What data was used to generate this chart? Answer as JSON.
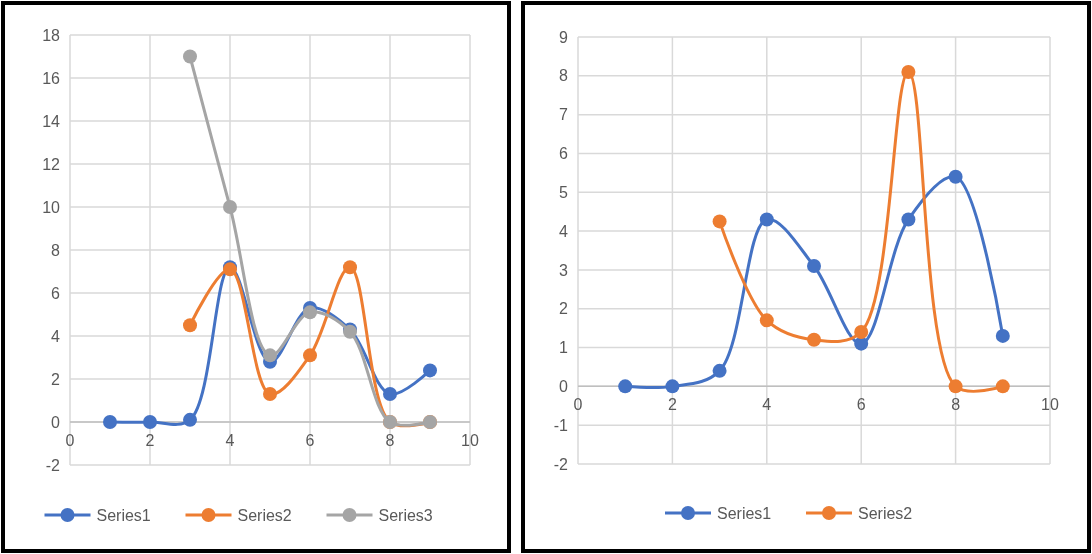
{
  "chart_data": [
    {
      "type": "line",
      "x": [
        1,
        2,
        3,
        4,
        5,
        6,
        7,
        8,
        9
      ],
      "series": [
        {
          "name": "Series1",
          "color": "#4472c4",
          "values": [
            0,
            0,
            0.1,
            7.2,
            2.8,
            5.3,
            4.3,
            1.3,
            2.4
          ]
        },
        {
          "name": "Series2",
          "color": "#ed7d31",
          "x": [
            3,
            4,
            5,
            6,
            7,
            8,
            9
          ],
          "values": [
            4.5,
            7.1,
            1.3,
            3.1,
            7.2,
            0,
            0
          ]
        },
        {
          "name": "Series3",
          "color": "#a5a5a5",
          "x": [
            3,
            4,
            5,
            6,
            7,
            8,
            9
          ],
          "values": [
            17,
            10,
            3.1,
            5.1,
            4.2,
            0,
            0
          ]
        }
      ],
      "xlim": [
        0,
        10
      ],
      "xticks": [
        0,
        2,
        4,
        6,
        8,
        10
      ],
      "ylim": [
        -2,
        18
      ],
      "yticks": [
        -2,
        0,
        2,
        4,
        6,
        8,
        10,
        12,
        14,
        16,
        18
      ],
      "grid": true,
      "legend": "bottom",
      "marker": "circle",
      "line_style": "solid"
    },
    {
      "type": "line",
      "x": [
        1,
        2,
        3,
        4,
        5,
        6,
        7,
        8,
        9
      ],
      "series": [
        {
          "name": "Series1",
          "color": "#4472c4",
          "values": [
            0,
            0,
            0.4,
            4.3,
            3.1,
            1.1,
            4.3,
            5.4,
            1.3
          ]
        },
        {
          "name": "Series2",
          "color": "#ed7d31",
          "x": [
            3,
            4,
            5,
            6,
            7,
            8,
            9
          ],
          "values": [
            4.25,
            1.7,
            1.2,
            1.4,
            8.1,
            0,
            0
          ]
        }
      ],
      "xlim": [
        0,
        10
      ],
      "xticks": [
        0,
        2,
        4,
        6,
        8,
        10
      ],
      "ylim": [
        -2,
        9
      ],
      "yticks": [
        -2,
        -1,
        0,
        1,
        2,
        3,
        4,
        5,
        6,
        7,
        8,
        9
      ],
      "grid": true,
      "legend": "bottom",
      "marker": "circle",
      "line_style": "solid"
    }
  ]
}
